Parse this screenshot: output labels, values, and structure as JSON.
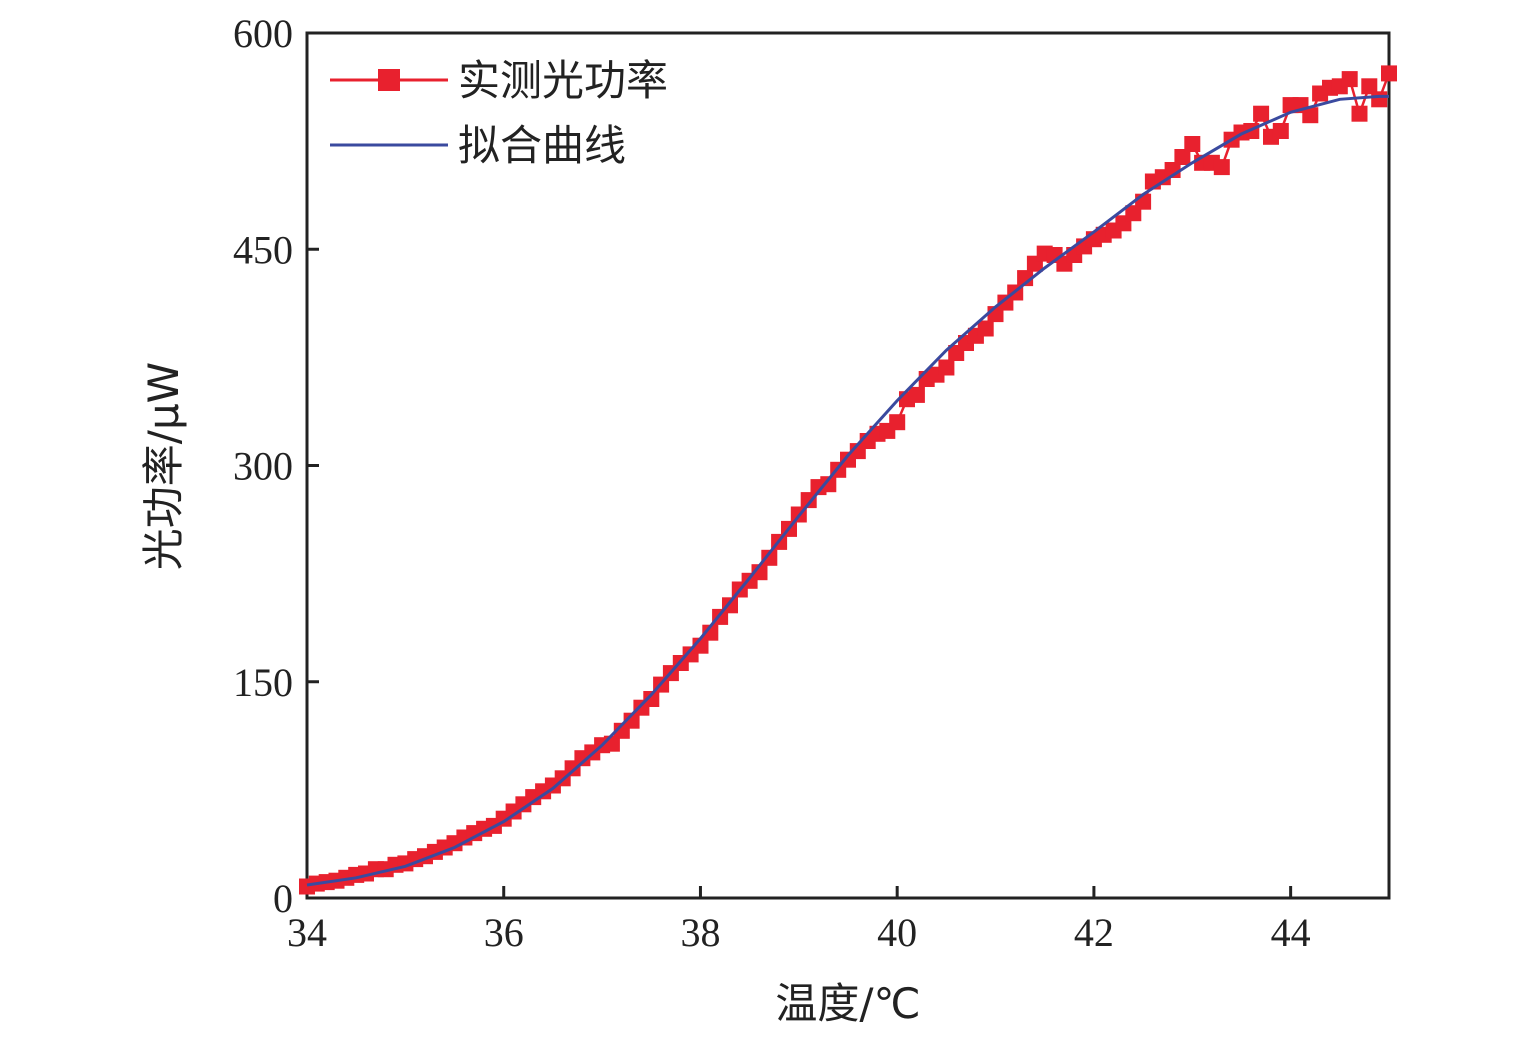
{
  "chart_data": {
    "type": "line",
    "xlabel": "温度/℃",
    "ylabel": "光功率/μW",
    "xlim": [
      34,
      45
    ],
    "ylim": [
      0,
      600
    ],
    "x_ticks": [
      34,
      36,
      38,
      40,
      42,
      44
    ],
    "y_ticks": [
      0,
      150,
      300,
      450,
      600
    ],
    "legend_position": "top-left",
    "grid": false,
    "series": [
      {
        "name": "实测光功率",
        "type": "line+marker",
        "marker": "square",
        "color": "#e8212e",
        "x": [
          34.0,
          34.1,
          34.2,
          34.3,
          34.4,
          34.5,
          34.6,
          34.7,
          34.8,
          34.9,
          35.0,
          35.1,
          35.2,
          35.3,
          35.4,
          35.5,
          35.6,
          35.7,
          35.8,
          35.9,
          36.0,
          36.1,
          36.2,
          36.3,
          36.4,
          36.5,
          36.6,
          36.7,
          36.8,
          36.9,
          37.0,
          37.1,
          37.2,
          37.3,
          37.4,
          37.5,
          37.6,
          37.7,
          37.8,
          37.9,
          38.0,
          38.1,
          38.2,
          38.3,
          38.4,
          38.5,
          38.6,
          38.7,
          38.8,
          38.9,
          39.0,
          39.1,
          39.2,
          39.3,
          39.4,
          39.5,
          39.6,
          39.7,
          39.8,
          39.9,
          40.0,
          40.1,
          40.2,
          40.3,
          40.4,
          40.5,
          40.6,
          40.7,
          40.8,
          40.9,
          41.0,
          41.1,
          41.2,
          41.3,
          41.4,
          41.5,
          41.6,
          41.7,
          41.8,
          41.9,
          42.0,
          42.1,
          42.2,
          42.3,
          42.4,
          42.5,
          42.6,
          42.7,
          42.8,
          42.9,
          43.0,
          43.1,
          43.2,
          43.3,
          43.4,
          43.5,
          43.6,
          43.7,
          43.8,
          43.9,
          44.0,
          44.1,
          44.2,
          44.3,
          44.4,
          44.5,
          44.6,
          44.7,
          44.8,
          44.9,
          45.0
        ],
        "y": [
          8,
          10,
          11,
          12,
          14,
          16,
          17,
          20,
          20,
          23,
          24,
          27,
          29,
          32,
          35,
          38,
          42,
          45,
          48,
          50,
          55,
          60,
          65,
          70,
          74,
          78,
          83,
          90,
          97,
          101,
          106,
          107,
          116,
          123,
          132,
          138,
          148,
          156,
          163,
          169,
          175,
          184,
          195,
          203,
          214,
          220,
          226,
          236,
          247,
          256,
          266,
          276,
          285,
          287,
          297,
          304,
          310,
          317,
          322,
          324,
          330,
          346,
          349,
          360,
          363,
          368,
          378,
          385,
          390,
          395,
          405,
          413,
          420,
          430,
          440,
          447,
          446,
          440,
          446,
          452,
          457,
          460,
          463,
          468,
          475,
          483,
          497,
          500,
          505,
          514,
          523,
          510,
          510,
          507,
          526,
          531,
          532,
          544,
          528,
          532,
          550,
          550,
          543,
          558,
          562,
          563,
          568,
          544,
          563,
          554,
          572
        ]
      },
      {
        "name": "拟合曲线",
        "type": "line",
        "color": "#3a4a9f",
        "x": [
          34.0,
          34.5,
          35.0,
          35.5,
          36.0,
          36.5,
          37.0,
          37.5,
          38.0,
          38.5,
          39.0,
          39.5,
          40.0,
          40.5,
          41.0,
          41.5,
          42.0,
          42.5,
          43.0,
          43.5,
          44.0,
          44.5,
          44.9,
          45.0
        ],
        "y": [
          9,
          14,
          22,
          35,
          53,
          76,
          106,
          141,
          180,
          222,
          265,
          307,
          345,
          380,
          410,
          437,
          462,
          488,
          510,
          530,
          545,
          554,
          556,
          556
        ]
      }
    ]
  }
}
